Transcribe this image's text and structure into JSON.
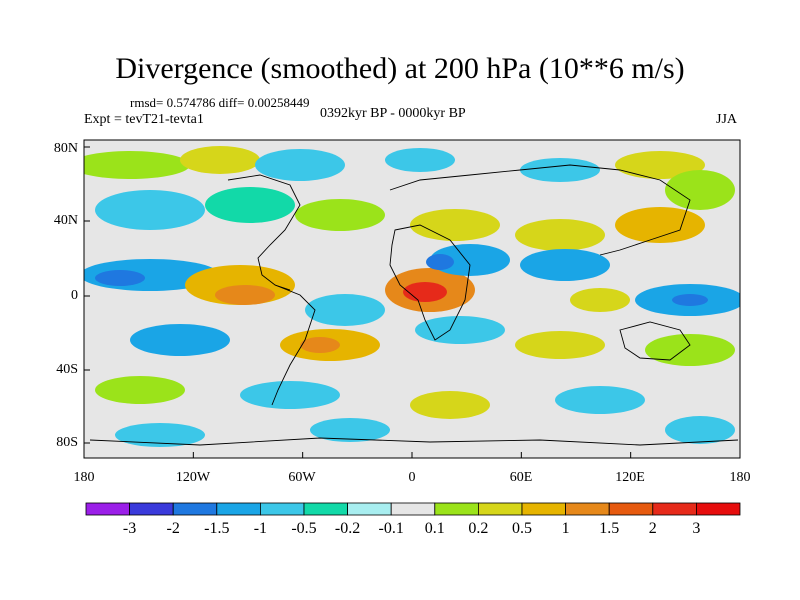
{
  "title": "Divergence (smoothed) at 200 hPa (10**6 m/s)",
  "stats": "rmsd= 0.574786 diff= 0.00258449",
  "experiment": "Expt = tevT21-tevta1",
  "period": "0392kyr BP - 0000kyr BP",
  "season": "JJA",
  "axes": {
    "lat_labels": [
      "80N",
      "40N",
      "0",
      "40S",
      "80S"
    ],
    "lon_labels": [
      "180",
      "120W",
      "60W",
      "0",
      "60E",
      "120E",
      "180"
    ]
  },
  "colorbar": {
    "labels": [
      "-3",
      "-2",
      "-1.5",
      "-1",
      "-0.5",
      "-0.2",
      "-0.1",
      "0.1",
      "0.2",
      "0.5",
      "1",
      "1.5",
      "2",
      "3"
    ],
    "colors": [
      "#9b1fe8",
      "#3a3adb",
      "#1f78e0",
      "#1aa5e6",
      "#3cc7e8",
      "#12d9a8",
      "#a8eef0",
      "#e6e6e6",
      "#9be31a",
      "#d6d61a",
      "#e6b400",
      "#e6881a",
      "#e65a0f",
      "#e62a1a",
      "#e60d0d"
    ]
  }
}
